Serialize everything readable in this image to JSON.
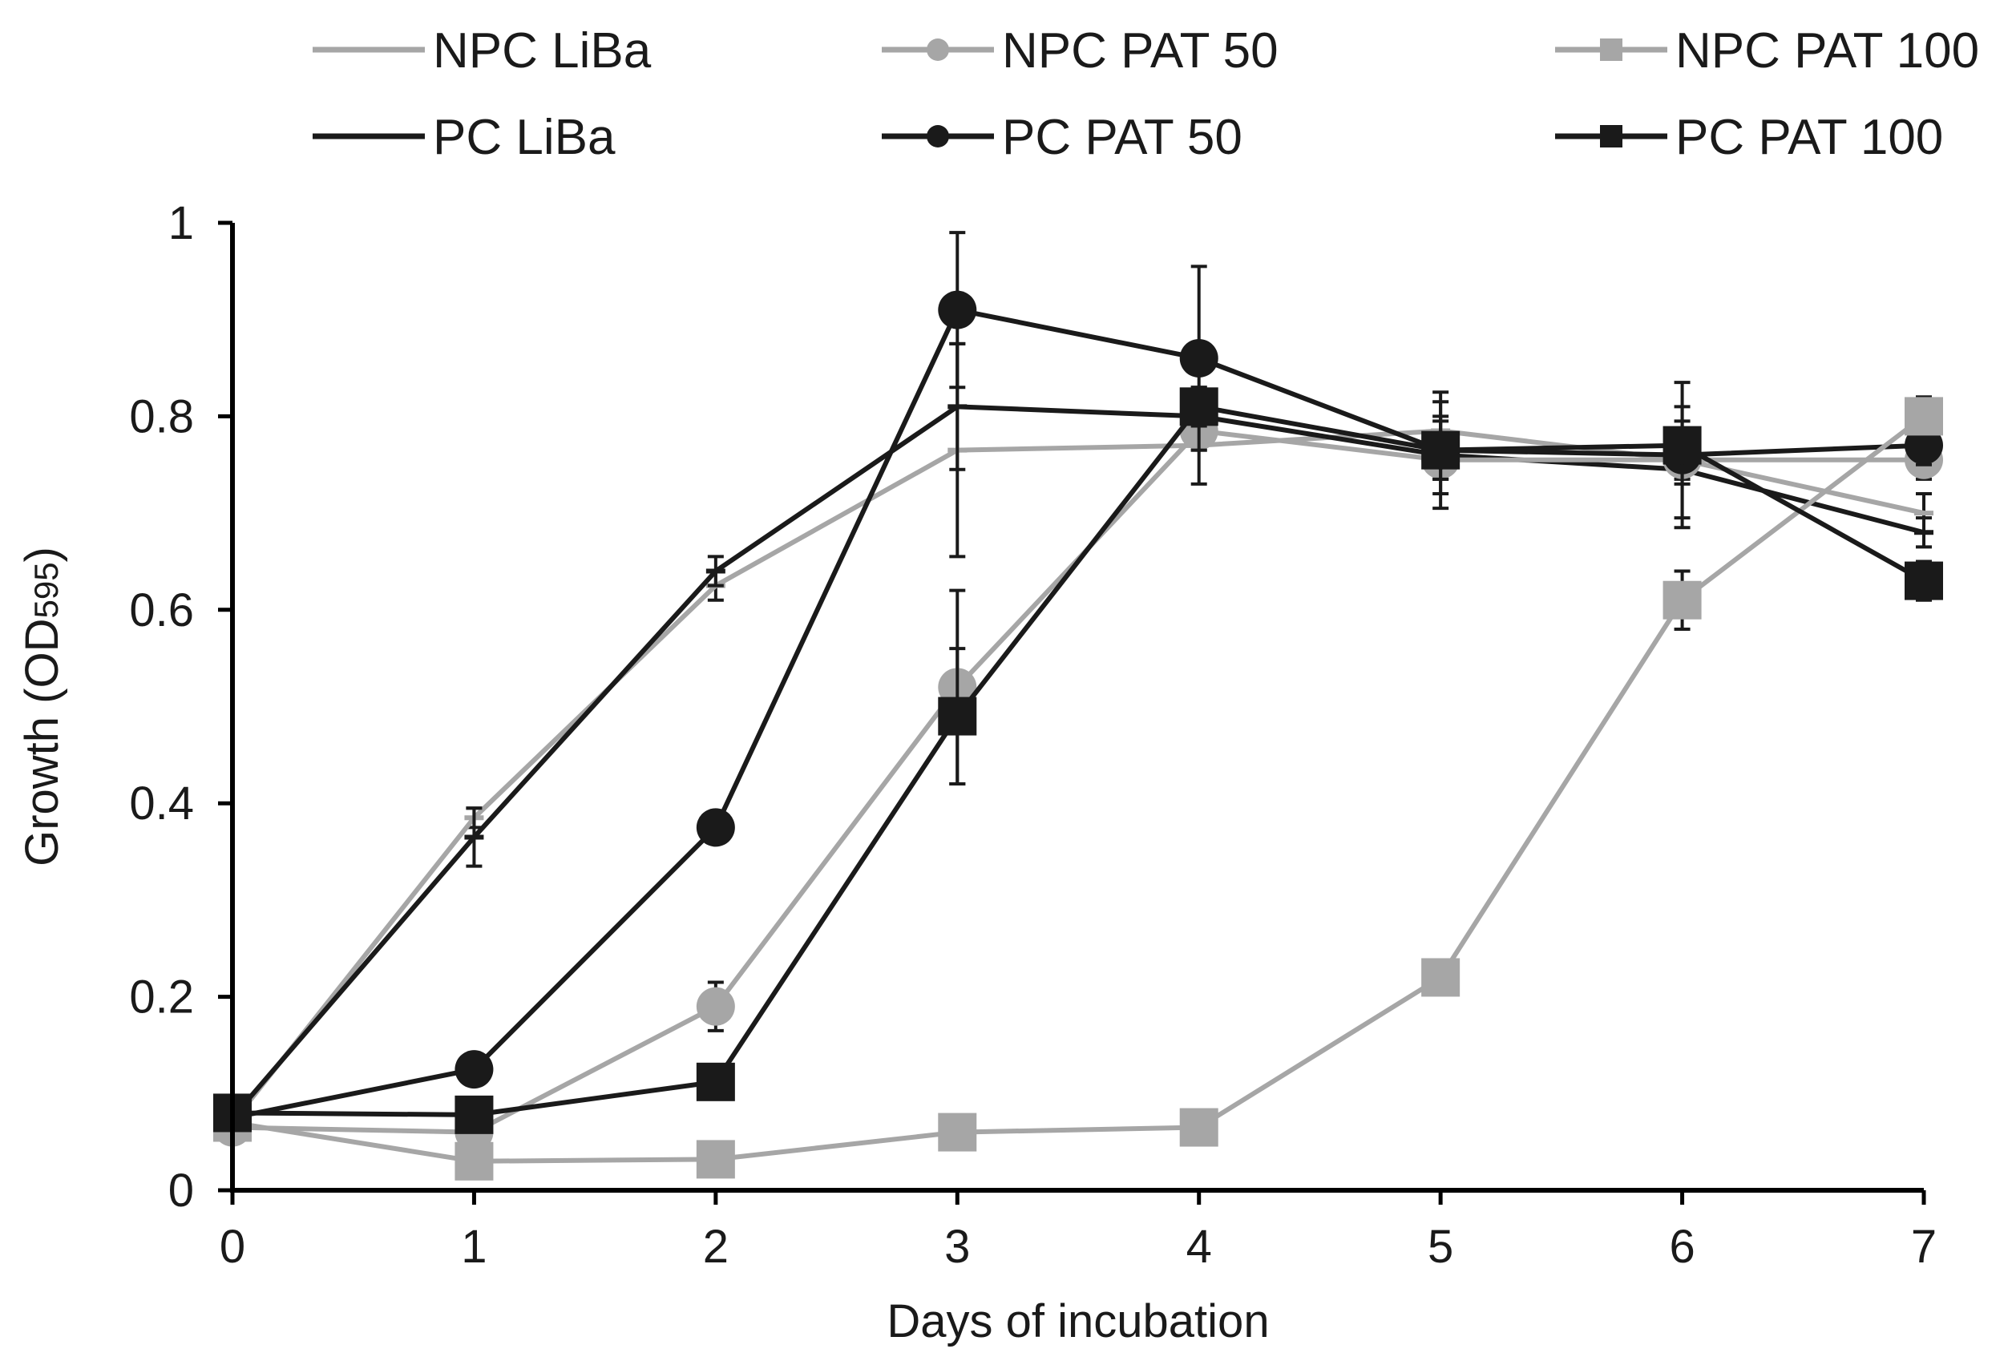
{
  "chart_data": {
    "type": "line",
    "title": "",
    "xlabel": "Days of incubation",
    "ylabel_main": "Growth (OD",
    "ylabel_sub": "595",
    "ylabel_close": ")",
    "x": [
      0,
      1,
      2,
      3,
      4,
      5,
      6,
      7
    ],
    "xlim": [
      0,
      7
    ],
    "ylim": [
      0,
      1
    ],
    "x_ticks": [
      "0",
      "1",
      "2",
      "3",
      "4",
      "5",
      "6",
      "7"
    ],
    "y_ticks": [
      {
        "value": 0,
        "label": "0"
      },
      {
        "value": 0.2,
        "label": "0.2"
      },
      {
        "value": 0.4,
        "label": "0.4"
      },
      {
        "value": 0.6,
        "label": "0.6"
      },
      {
        "value": 0.8,
        "label": "0.8"
      },
      {
        "value": 1,
        "label": "1"
      }
    ],
    "grid": false,
    "legend_position": "top",
    "series": [
      {
        "name": "NPC LiBa",
        "color": "#a6a6a6",
        "marker": "dash",
        "values": [
          0.07,
          0.385,
          0.625,
          0.765,
          0.77,
          0.785,
          0.755,
          0.7
        ],
        "errors": [
          0,
          0.01,
          0.015,
          0.11,
          0.04,
          0.03,
          0.015,
          0.02
        ]
      },
      {
        "name": "PC LiBa",
        "color": "#1a1a1a",
        "marker": "dash",
        "values": [
          0.075,
          0.365,
          0.64,
          0.81,
          0.8,
          0.76,
          0.745,
          0.68
        ],
        "errors": [
          0,
          0.03,
          0.015,
          0.065,
          0.03,
          0.04,
          0.05,
          0.015
        ]
      },
      {
        "name": "NPC PAT 50",
        "color": "#a6a6a6",
        "marker": "circle",
        "values": [
          0.065,
          0.06,
          0.19,
          0.52,
          0.785,
          0.755,
          0.755,
          0.755
        ],
        "errors": [
          0,
          0.01,
          0.025,
          0.1,
          0.02,
          0.02,
          0.02,
          0.02
        ]
      },
      {
        "name": "PC PAT 50",
        "color": "#1a1a1a",
        "marker": "circle",
        "values": [
          0.075,
          0.125,
          0.375,
          0.91,
          0.86,
          0.765,
          0.76,
          0.77
        ],
        "errors": [
          0,
          0.01,
          0.01,
          0.08,
          0.095,
          0.06,
          0.075,
          0.02
        ]
      },
      {
        "name": "NPC PAT 100",
        "color": "#a6a6a6",
        "marker": "square",
        "values": [
          0.07,
          0.03,
          0.032,
          0.06,
          0.065,
          0.22,
          0.61,
          0.8
        ],
        "errors": [
          0,
          0.01,
          0.01,
          0.01,
          0.01,
          0.01,
          0.03,
          0.02
        ]
      },
      {
        "name": "PC PAT 100",
        "color": "#1a1a1a",
        "marker": "square",
        "values": [
          0.08,
          0.078,
          0.112,
          0.49,
          0.81,
          0.765,
          0.77,
          0.63
        ],
        "errors": [
          0,
          0.01,
          0.01,
          0.07,
          0.02,
          0.03,
          0.04,
          0.02
        ]
      }
    ]
  }
}
